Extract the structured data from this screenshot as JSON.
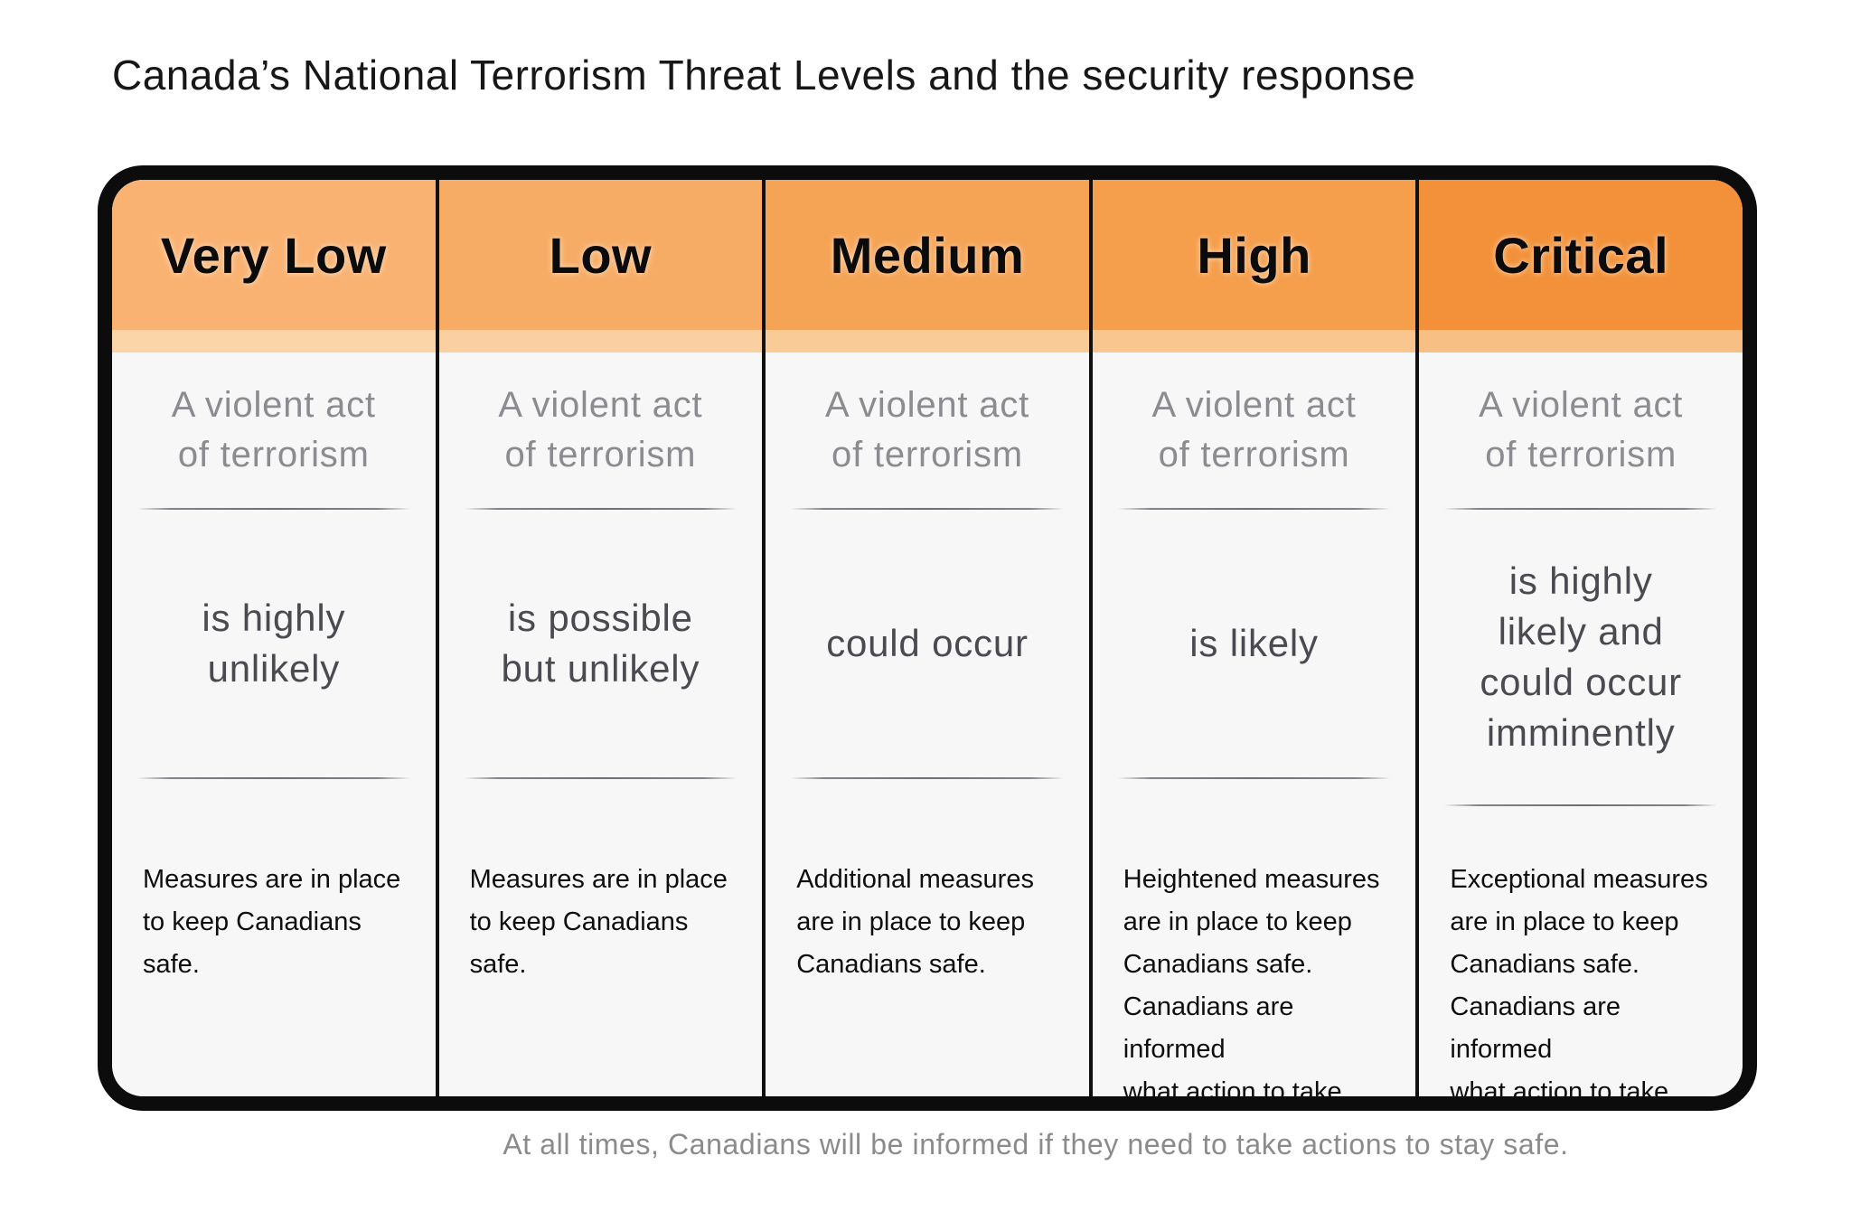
{
  "title": "Canada’s National Terrorism Threat Levels and the security response",
  "footer": "At all times, Canadians will be informed if they need to take actions to stay safe.",
  "frame_color": "#0c0c0c",
  "body_background": "#f7f7f8",
  "columns": [
    {
      "level": "Very Low",
      "header_color": "#f9b272",
      "strip_color": "#fbd4a8",
      "subject": "A violent act\nof terrorism",
      "likelihood": "is highly\nunlikely",
      "response": "Measures are in place\nto keep Canadians safe."
    },
    {
      "level": "Low",
      "header_color": "#f7ac66",
      "strip_color": "#fad0a2",
      "subject": "A violent act\nof terrorism",
      "likelihood": "is possible\nbut unlikely",
      "response": "Measures are in place\nto keep Canadians safe."
    },
    {
      "level": "Medium",
      "header_color": "#f5a355",
      "strip_color": "#f9cb97",
      "subject": "A violent act\nof terrorism",
      "likelihood": "could occur",
      "response": "Additional measures\nare in place to keep\nCanadians safe."
    },
    {
      "level": "High",
      "header_color": "#f59e4c",
      "strip_color": "#f8c68e",
      "subject": "A violent act\nof terrorism",
      "likelihood": "is likely",
      "response": "Heightened measures\nare in place to keep\nCanadians safe.\nCanadians are informed\nwhat action to take."
    },
    {
      "level": "Critical",
      "header_color": "#f2913a",
      "strip_color": "#f7bf83",
      "subject": "A violent act\nof terrorism",
      "likelihood": "is highly\nlikely and\ncould occur\nimminently",
      "response": "Exceptional measures\nare in place to keep\nCanadians safe.\nCanadians are informed\nwhat action to take."
    }
  ]
}
